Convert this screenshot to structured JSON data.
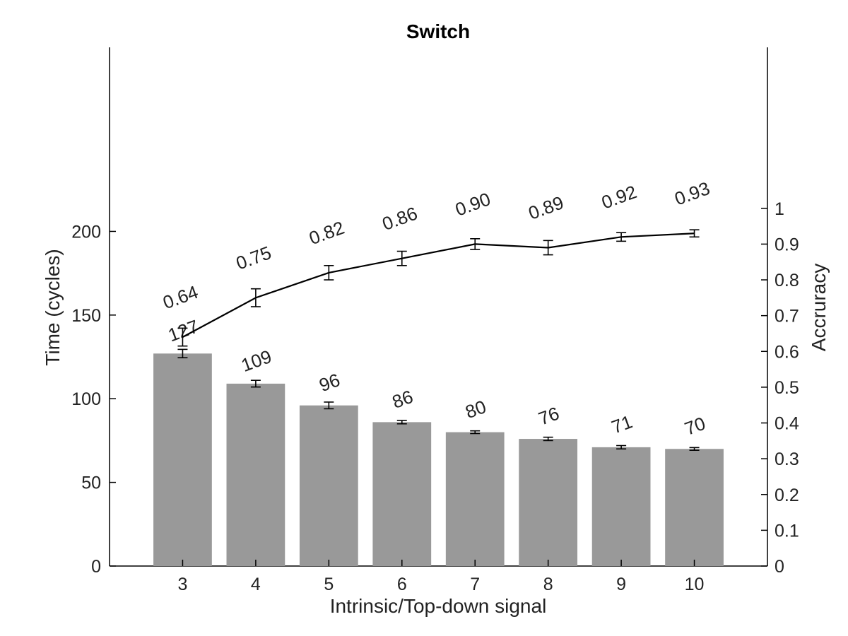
{
  "chart_data": {
    "type": "bar",
    "title": "Switch",
    "xlabel": "Intrinsic/Top-down signal",
    "ylabel": "Time (cycles)",
    "y2label": "Accruracy",
    "categories": [
      "3",
      "4",
      "5",
      "6",
      "7",
      "8",
      "9",
      "10"
    ],
    "ylim": [
      0,
      310
    ],
    "y2lim": [
      0,
      1.45
    ],
    "yticks": [
      "0",
      "50",
      "100",
      "150",
      "200"
    ],
    "y2ticks": [
      "0",
      "0.1",
      "0.2",
      "0.3",
      "0.4",
      "0.5",
      "0.6",
      "0.7",
      "0.8",
      "0.9",
      "1"
    ],
    "bar_series": {
      "values": [
        127,
        109,
        96,
        86,
        80,
        76,
        71,
        70
      ],
      "error": [
        2.5,
        2.0,
        2.0,
        1.0,
        0.8,
        1.0,
        1.0,
        0.8
      ],
      "labels": [
        "127",
        "109",
        "96",
        "86",
        "80",
        "76",
        "71",
        "70"
      ],
      "color": "#999999",
      "axis": "left"
    },
    "line_series": {
      "values": [
        0.64,
        0.75,
        0.82,
        0.86,
        0.9,
        0.89,
        0.92,
        0.93
      ],
      "error": [
        0.025,
        0.025,
        0.02,
        0.02,
        0.015,
        0.02,
        0.012,
        0.01
      ],
      "labels": [
        "0.64",
        "0.75",
        "0.82",
        "0.86",
        "0.90",
        "0.89",
        "0.92",
        "0.93"
      ],
      "color": "#000000",
      "axis": "right"
    },
    "grid": false,
    "legend": "none"
  }
}
